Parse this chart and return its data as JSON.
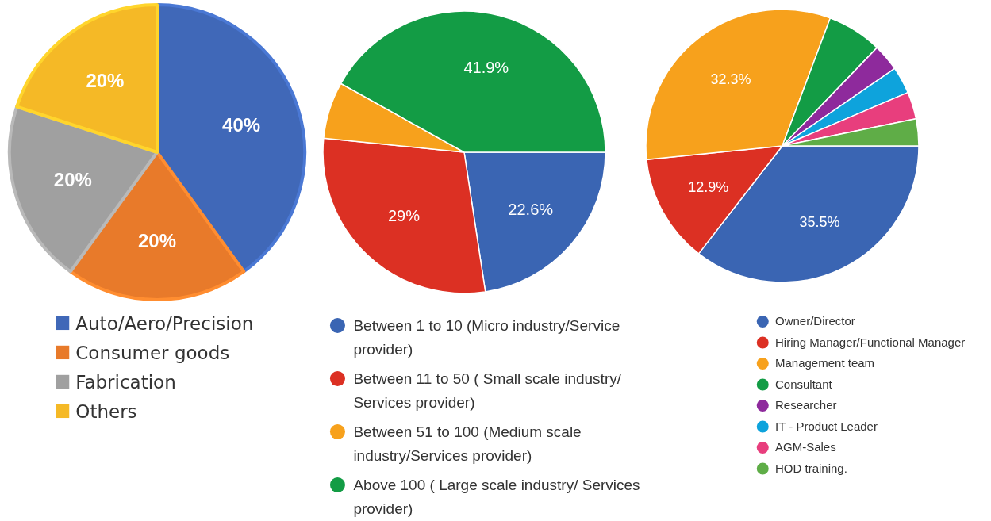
{
  "chart_data": [
    {
      "type": "pie",
      "categories": [
        "Auto/Aero/Precision",
        "Consumer goods",
        "Fabrication",
        "Others"
      ],
      "values": [
        40,
        20,
        20,
        20
      ],
      "value_labels": [
        "40%",
        "20%",
        "20%",
        "20%"
      ],
      "colors": [
        "#4068b8",
        "#e87a2a",
        "#a0a0a0",
        "#f5b926"
      ],
      "legend": "bottom"
    },
    {
      "type": "pie",
      "categories": [
        "Between 1 to 10 (Micro industry/Service provider)",
        "Between 11 to 50 ( Small scale industry/ Services provider)",
        "Between 51 to 100 (Medium scale industry/Services provider)",
        "Above 100 ( Large scale industry/ Services provider)"
      ],
      "values": [
        22.6,
        29,
        6.5,
        41.9
      ],
      "value_labels": [
        "22.6%",
        "29%",
        null,
        "41.9%"
      ],
      "colors": [
        "#3a65b3",
        "#dc3023",
        "#f7a11c",
        "#139c45"
      ],
      "legend": "bottom"
    },
    {
      "type": "pie",
      "categories": [
        "Owner/Director",
        "Hiring Manager/Functional Manager",
        "Management team",
        "Consultant",
        "Researcher",
        "IT - Product Leader",
        "AGM-Sales",
        "HOD training."
      ],
      "values": [
        35.5,
        12.9,
        32.3,
        6.5,
        3.2,
        3.2,
        3.2,
        3.2
      ],
      "value_labels": [
        "35.5%",
        "12.9%",
        "32.3%",
        null,
        null,
        null,
        null,
        null
      ],
      "colors": [
        "#3a65b3",
        "#dc3023",
        "#f7a11c",
        "#139c45",
        "#8e2a9c",
        "#0ea3dc",
        "#e83e7d",
        "#5fad47"
      ],
      "legend": "bottom right"
    }
  ]
}
